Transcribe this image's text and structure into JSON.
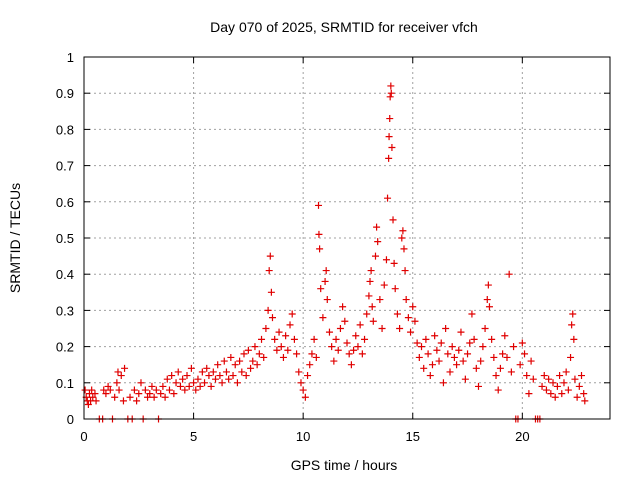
{
  "chart_data": {
    "type": "scatter",
    "title": "Day 070 of 2025, SRMTID for receiver vfch",
    "xlabel": "GPS time / hours",
    "ylabel": "SRMTID / TECUs",
    "xlim": [
      0,
      24
    ],
    "ylim": [
      0,
      1
    ],
    "grid": true,
    "x_ticks": [
      "0",
      "5",
      "10",
      "15",
      "20"
    ],
    "x_tick_values": [
      0,
      5,
      10,
      15,
      20
    ],
    "y_ticks": [
      "0",
      "0.1",
      "0.2",
      "0.3",
      "0.4",
      "0.5",
      "0.6",
      "0.7",
      "0.8",
      "0.9",
      "1"
    ],
    "y_tick_values": [
      0,
      0.1,
      0.2,
      0.3,
      0.4,
      0.5,
      0.6,
      0.7,
      0.8,
      0.9,
      1
    ],
    "marker": "plus",
    "color": "#e00000",
    "series": [
      {
        "name": "SRMTID",
        "points": [
          [
            0.05,
            0.08
          ],
          [
            0.1,
            0.06
          ],
          [
            0.15,
            0.05
          ],
          [
            0.2,
            0.04
          ],
          [
            0.25,
            0.07
          ],
          [
            0.3,
            0.05
          ],
          [
            0.35,
            0.08
          ],
          [
            0.4,
            0.06
          ],
          [
            0.5,
            0.07
          ],
          [
            0.55,
            0.05
          ],
          [
            0.7,
            0.0
          ],
          [
            0.85,
            0.0
          ],
          [
            0.9,
            0.08
          ],
          [
            1.0,
            0.07
          ],
          [
            1.1,
            0.09
          ],
          [
            1.2,
            0.08
          ],
          [
            1.3,
            0.0
          ],
          [
            1.4,
            0.06
          ],
          [
            1.5,
            0.1
          ],
          [
            1.55,
            0.13
          ],
          [
            1.6,
            0.08
          ],
          [
            1.7,
            0.12
          ],
          [
            1.8,
            0.05
          ],
          [
            1.85,
            0.14
          ],
          [
            2.0,
            0.0
          ],
          [
            2.1,
            0.06
          ],
          [
            2.2,
            0.0
          ],
          [
            2.3,
            0.08
          ],
          [
            2.4,
            0.05
          ],
          [
            2.5,
            0.07
          ],
          [
            2.6,
            0.1
          ],
          [
            2.7,
            0.0
          ],
          [
            2.8,
            0.08
          ],
          [
            2.9,
            0.06
          ],
          [
            3.0,
            0.07
          ],
          [
            3.1,
            0.09
          ],
          [
            3.2,
            0.06
          ],
          [
            3.3,
            0.08
          ],
          [
            3.4,
            0.0
          ],
          [
            3.5,
            0.07
          ],
          [
            3.6,
            0.09
          ],
          [
            3.7,
            0.06
          ],
          [
            3.8,
            0.11
          ],
          [
            3.9,
            0.08
          ],
          [
            4.0,
            0.12
          ],
          [
            4.1,
            0.07
          ],
          [
            4.2,
            0.1
          ],
          [
            4.3,
            0.13
          ],
          [
            4.4,
            0.09
          ],
          [
            4.5,
            0.11
          ],
          [
            4.6,
            0.08
          ],
          [
            4.7,
            0.12
          ],
          [
            4.8,
            0.09
          ],
          [
            4.9,
            0.14
          ],
          [
            5.0,
            0.1
          ],
          [
            5.1,
            0.08
          ],
          [
            5.2,
            0.11
          ],
          [
            5.3,
            0.09
          ],
          [
            5.4,
            0.13
          ],
          [
            5.5,
            0.1
          ],
          [
            5.6,
            0.14
          ],
          [
            5.7,
            0.12
          ],
          [
            5.8,
            0.09
          ],
          [
            5.9,
            0.13
          ],
          [
            6.0,
            0.11
          ],
          [
            6.1,
            0.15
          ],
          [
            6.2,
            0.12
          ],
          [
            6.3,
            0.1
          ],
          [
            6.4,
            0.16
          ],
          [
            6.5,
            0.13
          ],
          [
            6.6,
            0.11
          ],
          [
            6.7,
            0.17
          ],
          [
            6.8,
            0.12
          ],
          [
            6.9,
            0.15
          ],
          [
            7.0,
            0.1
          ],
          [
            7.1,
            0.16
          ],
          [
            7.2,
            0.13
          ],
          [
            7.3,
            0.18
          ],
          [
            7.4,
            0.12
          ],
          [
            7.5,
            0.19
          ],
          [
            7.6,
            0.14
          ],
          [
            7.7,
            0.16
          ],
          [
            7.8,
            0.2
          ],
          [
            7.9,
            0.15
          ],
          [
            8.0,
            0.18
          ],
          [
            8.1,
            0.22
          ],
          [
            8.2,
            0.17
          ],
          [
            8.3,
            0.25
          ],
          [
            8.4,
            0.3
          ],
          [
            8.45,
            0.41
          ],
          [
            8.5,
            0.45
          ],
          [
            8.55,
            0.35
          ],
          [
            8.6,
            0.28
          ],
          [
            8.7,
            0.22
          ],
          [
            8.8,
            0.19
          ],
          [
            8.9,
            0.24
          ],
          [
            9.0,
            0.2
          ],
          [
            9.1,
            0.17
          ],
          [
            9.2,
            0.23
          ],
          [
            9.3,
            0.19
          ],
          [
            9.4,
            0.26
          ],
          [
            9.5,
            0.29
          ],
          [
            9.6,
            0.22
          ],
          [
            9.7,
            0.18
          ],
          [
            9.8,
            0.13
          ],
          [
            9.9,
            0.1
          ],
          [
            10.0,
            0.08
          ],
          [
            10.1,
            0.06
          ],
          [
            10.2,
            0.12
          ],
          [
            10.3,
            0.15
          ],
          [
            10.4,
            0.18
          ],
          [
            10.5,
            0.22
          ],
          [
            10.6,
            0.17
          ],
          [
            10.7,
            0.59
          ],
          [
            10.72,
            0.51
          ],
          [
            10.75,
            0.47
          ],
          [
            10.8,
            0.36
          ],
          [
            10.9,
            0.28
          ],
          [
            11.0,
            0.38
          ],
          [
            11.05,
            0.41
          ],
          [
            11.1,
            0.33
          ],
          [
            11.2,
            0.24
          ],
          [
            11.3,
            0.2
          ],
          [
            11.4,
            0.16
          ],
          [
            11.5,
            0.22
          ],
          [
            11.6,
            0.19
          ],
          [
            11.7,
            0.25
          ],
          [
            11.8,
            0.31
          ],
          [
            11.9,
            0.27
          ],
          [
            12.0,
            0.21
          ],
          [
            12.1,
            0.18
          ],
          [
            12.2,
            0.15
          ],
          [
            12.3,
            0.19
          ],
          [
            12.4,
            0.23
          ],
          [
            12.5,
            0.2
          ],
          [
            12.6,
            0.26
          ],
          [
            12.7,
            0.18
          ],
          [
            12.8,
            0.22
          ],
          [
            12.9,
            0.29
          ],
          [
            13.0,
            0.34
          ],
          [
            13.05,
            0.38
          ],
          [
            13.1,
            0.41
          ],
          [
            13.15,
            0.31
          ],
          [
            13.2,
            0.27
          ],
          [
            13.3,
            0.45
          ],
          [
            13.35,
            0.53
          ],
          [
            13.4,
            0.49
          ],
          [
            13.5,
            0.33
          ],
          [
            13.6,
            0.25
          ],
          [
            13.7,
            0.37
          ],
          [
            13.8,
            0.44
          ],
          [
            13.85,
            0.61
          ],
          [
            13.9,
            0.72
          ],
          [
            13.92,
            0.78
          ],
          [
            13.95,
            0.83
          ],
          [
            13.97,
            0.89
          ],
          [
            14.0,
            0.92
          ],
          [
            14.02,
            0.9
          ],
          [
            14.05,
            0.75
          ],
          [
            14.1,
            0.55
          ],
          [
            14.15,
            0.43
          ],
          [
            14.2,
            0.36
          ],
          [
            14.3,
            0.29
          ],
          [
            14.4,
            0.25
          ],
          [
            14.5,
            0.5
          ],
          [
            14.55,
            0.52
          ],
          [
            14.6,
            0.47
          ],
          [
            14.65,
            0.41
          ],
          [
            14.7,
            0.33
          ],
          [
            14.8,
            0.28
          ],
          [
            14.9,
            0.24
          ],
          [
            15.0,
            0.31
          ],
          [
            15.1,
            0.27
          ],
          [
            15.2,
            0.21
          ],
          [
            15.3,
            0.17
          ],
          [
            15.4,
            0.2
          ],
          [
            15.5,
            0.14
          ],
          [
            15.6,
            0.22
          ],
          [
            15.7,
            0.18
          ],
          [
            15.8,
            0.12
          ],
          [
            15.9,
            0.15
          ],
          [
            16.0,
            0.23
          ],
          [
            16.1,
            0.19
          ],
          [
            16.2,
            0.16
          ],
          [
            16.3,
            0.21
          ],
          [
            16.4,
            0.1
          ],
          [
            16.5,
            0.25
          ],
          [
            16.6,
            0.18
          ],
          [
            16.7,
            0.13
          ],
          [
            16.8,
            0.2
          ],
          [
            16.9,
            0.17
          ],
          [
            17.0,
            0.15
          ],
          [
            17.1,
            0.19
          ],
          [
            17.2,
            0.24
          ],
          [
            17.3,
            0.16
          ],
          [
            17.4,
            0.11
          ],
          [
            17.5,
            0.18
          ],
          [
            17.6,
            0.21
          ],
          [
            17.7,
            0.29
          ],
          [
            17.8,
            0.22
          ],
          [
            17.9,
            0.14
          ],
          [
            18.0,
            0.09
          ],
          [
            18.1,
            0.16
          ],
          [
            18.2,
            0.2
          ],
          [
            18.3,
            0.25
          ],
          [
            18.4,
            0.33
          ],
          [
            18.45,
            0.37
          ],
          [
            18.5,
            0.31
          ],
          [
            18.6,
            0.22
          ],
          [
            18.7,
            0.17
          ],
          [
            18.8,
            0.12
          ],
          [
            18.9,
            0.08
          ],
          [
            19.0,
            0.14
          ],
          [
            19.1,
            0.18
          ],
          [
            19.2,
            0.23
          ],
          [
            19.3,
            0.17
          ],
          [
            19.4,
            0.4
          ],
          [
            19.5,
            0.13
          ],
          [
            19.6,
            0.2
          ],
          [
            19.7,
            0.0
          ],
          [
            19.8,
            0.0
          ],
          [
            19.9,
            0.15
          ],
          [
            20.0,
            0.21
          ],
          [
            20.1,
            0.18
          ],
          [
            20.2,
            0.12
          ],
          [
            20.3,
            0.07
          ],
          [
            20.4,
            0.16
          ],
          [
            20.5,
            0.11
          ],
          [
            20.6,
            0.0
          ],
          [
            20.7,
            0.0
          ],
          [
            20.8,
            0.0
          ],
          [
            20.9,
            0.09
          ],
          [
            21.0,
            0.12
          ],
          [
            21.1,
            0.08
          ],
          [
            21.2,
            0.11
          ],
          [
            21.3,
            0.07
          ],
          [
            21.4,
            0.1
          ],
          [
            21.5,
            0.06
          ],
          [
            21.6,
            0.09
          ],
          [
            21.7,
            0.12
          ],
          [
            21.8,
            0.07
          ],
          [
            21.9,
            0.1
          ],
          [
            22.0,
            0.13
          ],
          [
            22.1,
            0.08
          ],
          [
            22.2,
            0.17
          ],
          [
            22.25,
            0.26
          ],
          [
            22.3,
            0.29
          ],
          [
            22.35,
            0.22
          ],
          [
            22.4,
            0.11
          ],
          [
            22.5,
            0.06
          ],
          [
            22.6,
            0.09
          ],
          [
            22.7,
            0.12
          ],
          [
            22.8,
            0.07
          ],
          [
            22.85,
            0.05
          ]
        ]
      }
    ]
  }
}
